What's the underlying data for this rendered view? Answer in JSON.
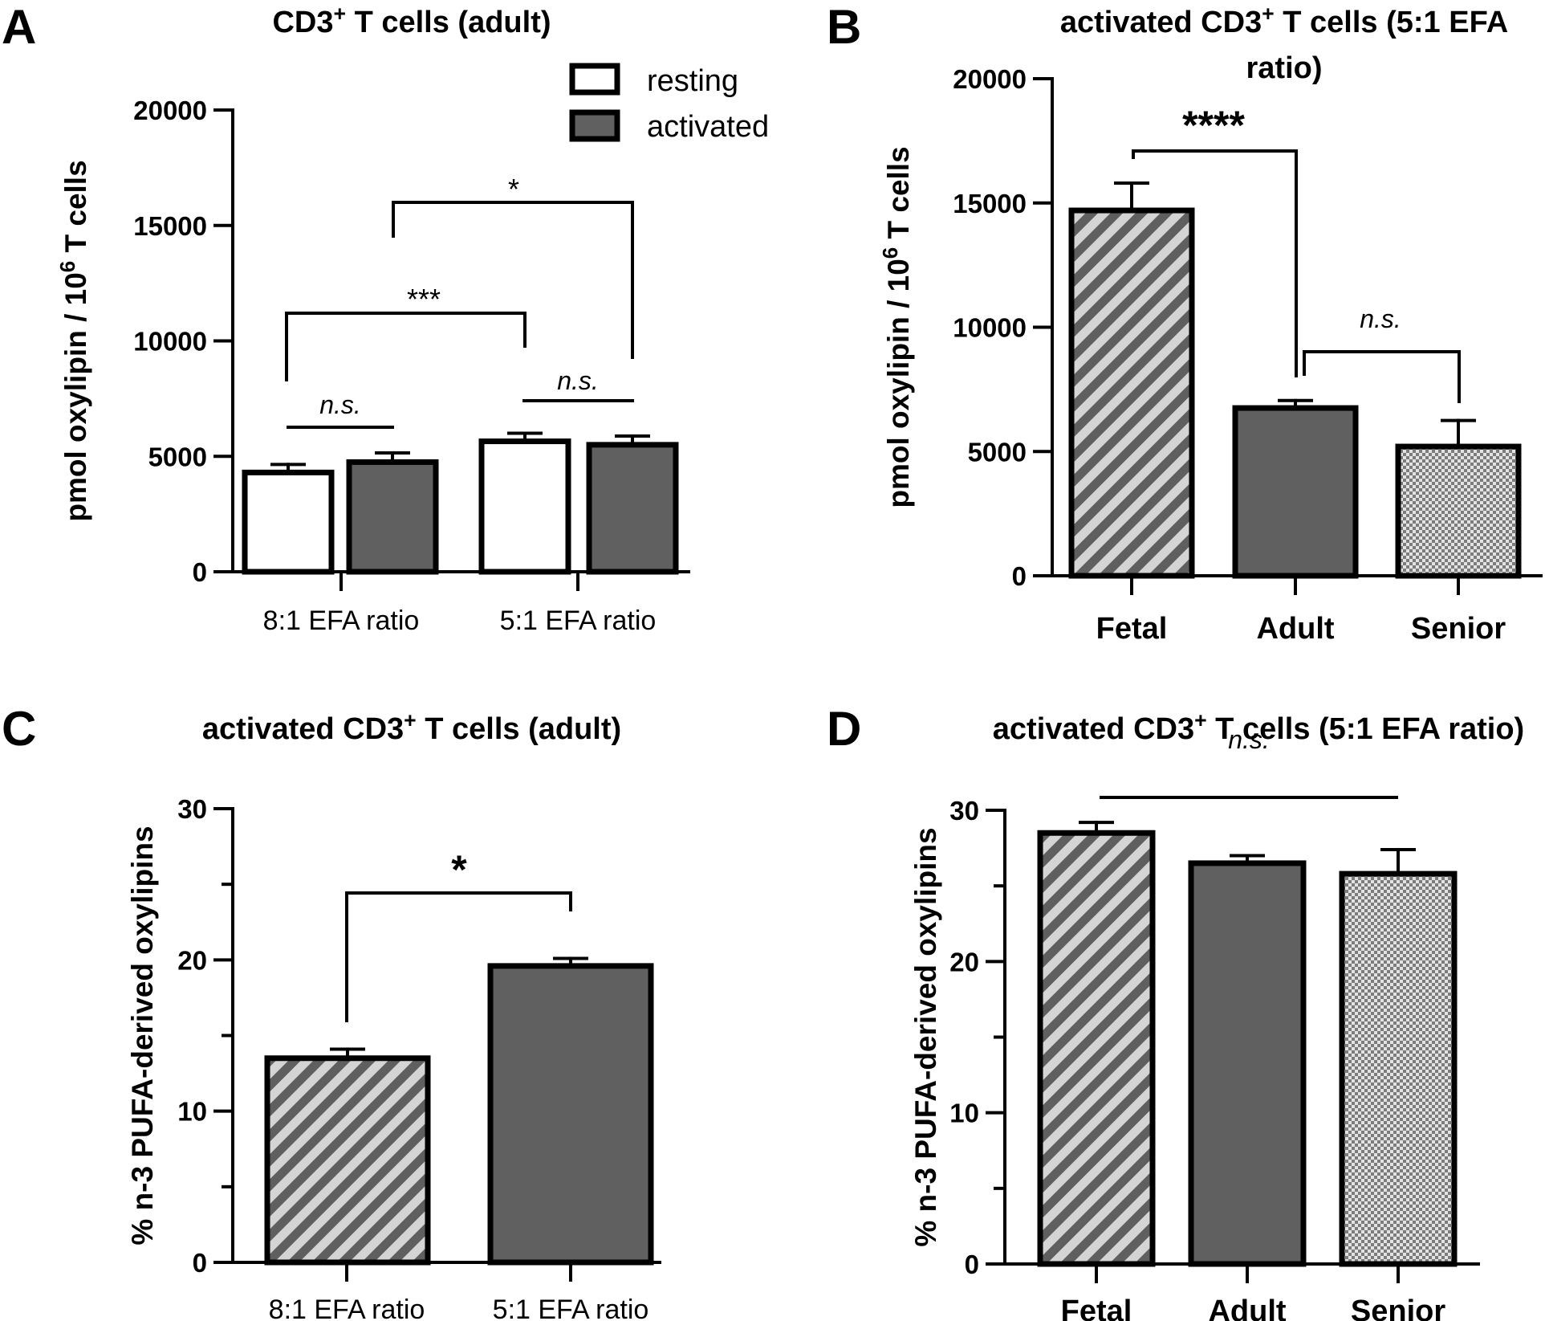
{
  "colors": {
    "activated": "#606060",
    "resting": "#ffffff",
    "stripe_bg": "#d4d4d4",
    "stripe_fg": "#5f5f5f",
    "checker_a": "#7c7c7c",
    "checker_b": "#e2e2e2",
    "axis": "#000000"
  },
  "chart_data": [
    {
      "panel": "A",
      "type": "bar",
      "title": "CD3⁺ T cells (adult)",
      "title_parts": {
        "pre": "CD3",
        "sup": "+",
        "post": " T cells (adult)"
      },
      "ylabel_parts": {
        "pre": "pmol oxylipin / 10",
        "sup": "6",
        "post": " T cells"
      },
      "ylim": [
        0,
        20000
      ],
      "yticks": [
        0,
        5000,
        10000,
        15000,
        20000
      ],
      "categories": [
        "8:1 EFA ratio",
        "5:1 EFA ratio"
      ],
      "legend": [
        "resting",
        "activated"
      ],
      "legend_position": "top-right",
      "series": [
        {
          "name": "resting",
          "values": [
            4300,
            5650
          ],
          "errors": [
            350,
            350
          ]
        },
        {
          "name": "activated",
          "values": [
            4750,
            5500
          ],
          "errors": [
            400,
            380
          ]
        }
      ],
      "annotations": [
        {
          "label": "n.s.",
          "style": "italic",
          "from": "8:1 EFA ratio / resting",
          "to": "8:1 EFA ratio / activated"
        },
        {
          "label": "n.s.",
          "style": "italic",
          "from": "5:1 EFA ratio / resting",
          "to": "5:1 EFA ratio / activated"
        },
        {
          "label": "***",
          "style": "normal",
          "from": "8:1 EFA ratio / resting",
          "to": "5:1 EFA ratio / resting"
        },
        {
          "label": "*",
          "style": "normal",
          "from": "8:1 EFA ratio / activated",
          "to": "5:1 EFA ratio / activated"
        }
      ]
    },
    {
      "panel": "B",
      "type": "bar",
      "title": "activated CD3⁺ T cells (5:1 EFA ratio)",
      "title_line1_parts": {
        "pre": "activated CD3",
        "sup": "+",
        "post": " T cells (5:1 EFA"
      },
      "title_line2": "ratio)",
      "ylabel_parts": {
        "pre": "pmol oxylipin / 10",
        "sup": "6",
        "post": " T cells"
      },
      "ylim": [
        0,
        20000
      ],
      "yticks": [
        0,
        5000,
        10000,
        15000,
        20000
      ],
      "categories": [
        "Fetal",
        "Adult",
        "Senior"
      ],
      "values": [
        14700,
        6750,
        5200
      ],
      "errors": [
        1100,
        300,
        1050
      ],
      "annotations": [
        {
          "label": "****",
          "style": "bold",
          "from": "Fetal",
          "to": "Adult"
        },
        {
          "label": "n.s.",
          "style": "italic",
          "from": "Adult",
          "to": "Senior"
        }
      ]
    },
    {
      "panel": "C",
      "type": "bar",
      "title": "activated CD3⁺ T cells (adult)",
      "title_parts": {
        "pre": "activated CD3",
        "sup": "+",
        "post": " T cells (adult)"
      },
      "ylabel": "% n-3 PUFA-derived oxylipins",
      "ylim": [
        0,
        30
      ],
      "yticks": [
        0,
        10,
        20,
        30
      ],
      "categories": [
        "8:1 EFA ratio",
        "5:1 EFA ratio"
      ],
      "values": [
        13.5,
        19.6
      ],
      "errors": [
        0.6,
        0.5
      ],
      "annotations": [
        {
          "label": "*",
          "style": "bold",
          "from": "8:1 EFA ratio",
          "to": "5:1 EFA ratio"
        }
      ]
    },
    {
      "panel": "D",
      "type": "bar",
      "title": "activated CD3⁺ T cells (5:1 EFA ratio)",
      "title_parts": {
        "pre": "activated CD3",
        "sup": "+",
        "post": " T cells (5:1 EFA ratio)"
      },
      "ylabel": "% n-3 PUFA-derived oxylipins",
      "ylim": [
        0,
        30
      ],
      "yticks": [
        0,
        10,
        20,
        30
      ],
      "categories": [
        "Fetal",
        "Adult",
        "Senior"
      ],
      "values": [
        28.5,
        26.5,
        25.8
      ],
      "errors": [
        0.7,
        0.5,
        1.6
      ],
      "annotations": [
        {
          "label": "n.s.",
          "style": "italic",
          "from": "Fetal",
          "to": "Senior"
        }
      ]
    }
  ]
}
